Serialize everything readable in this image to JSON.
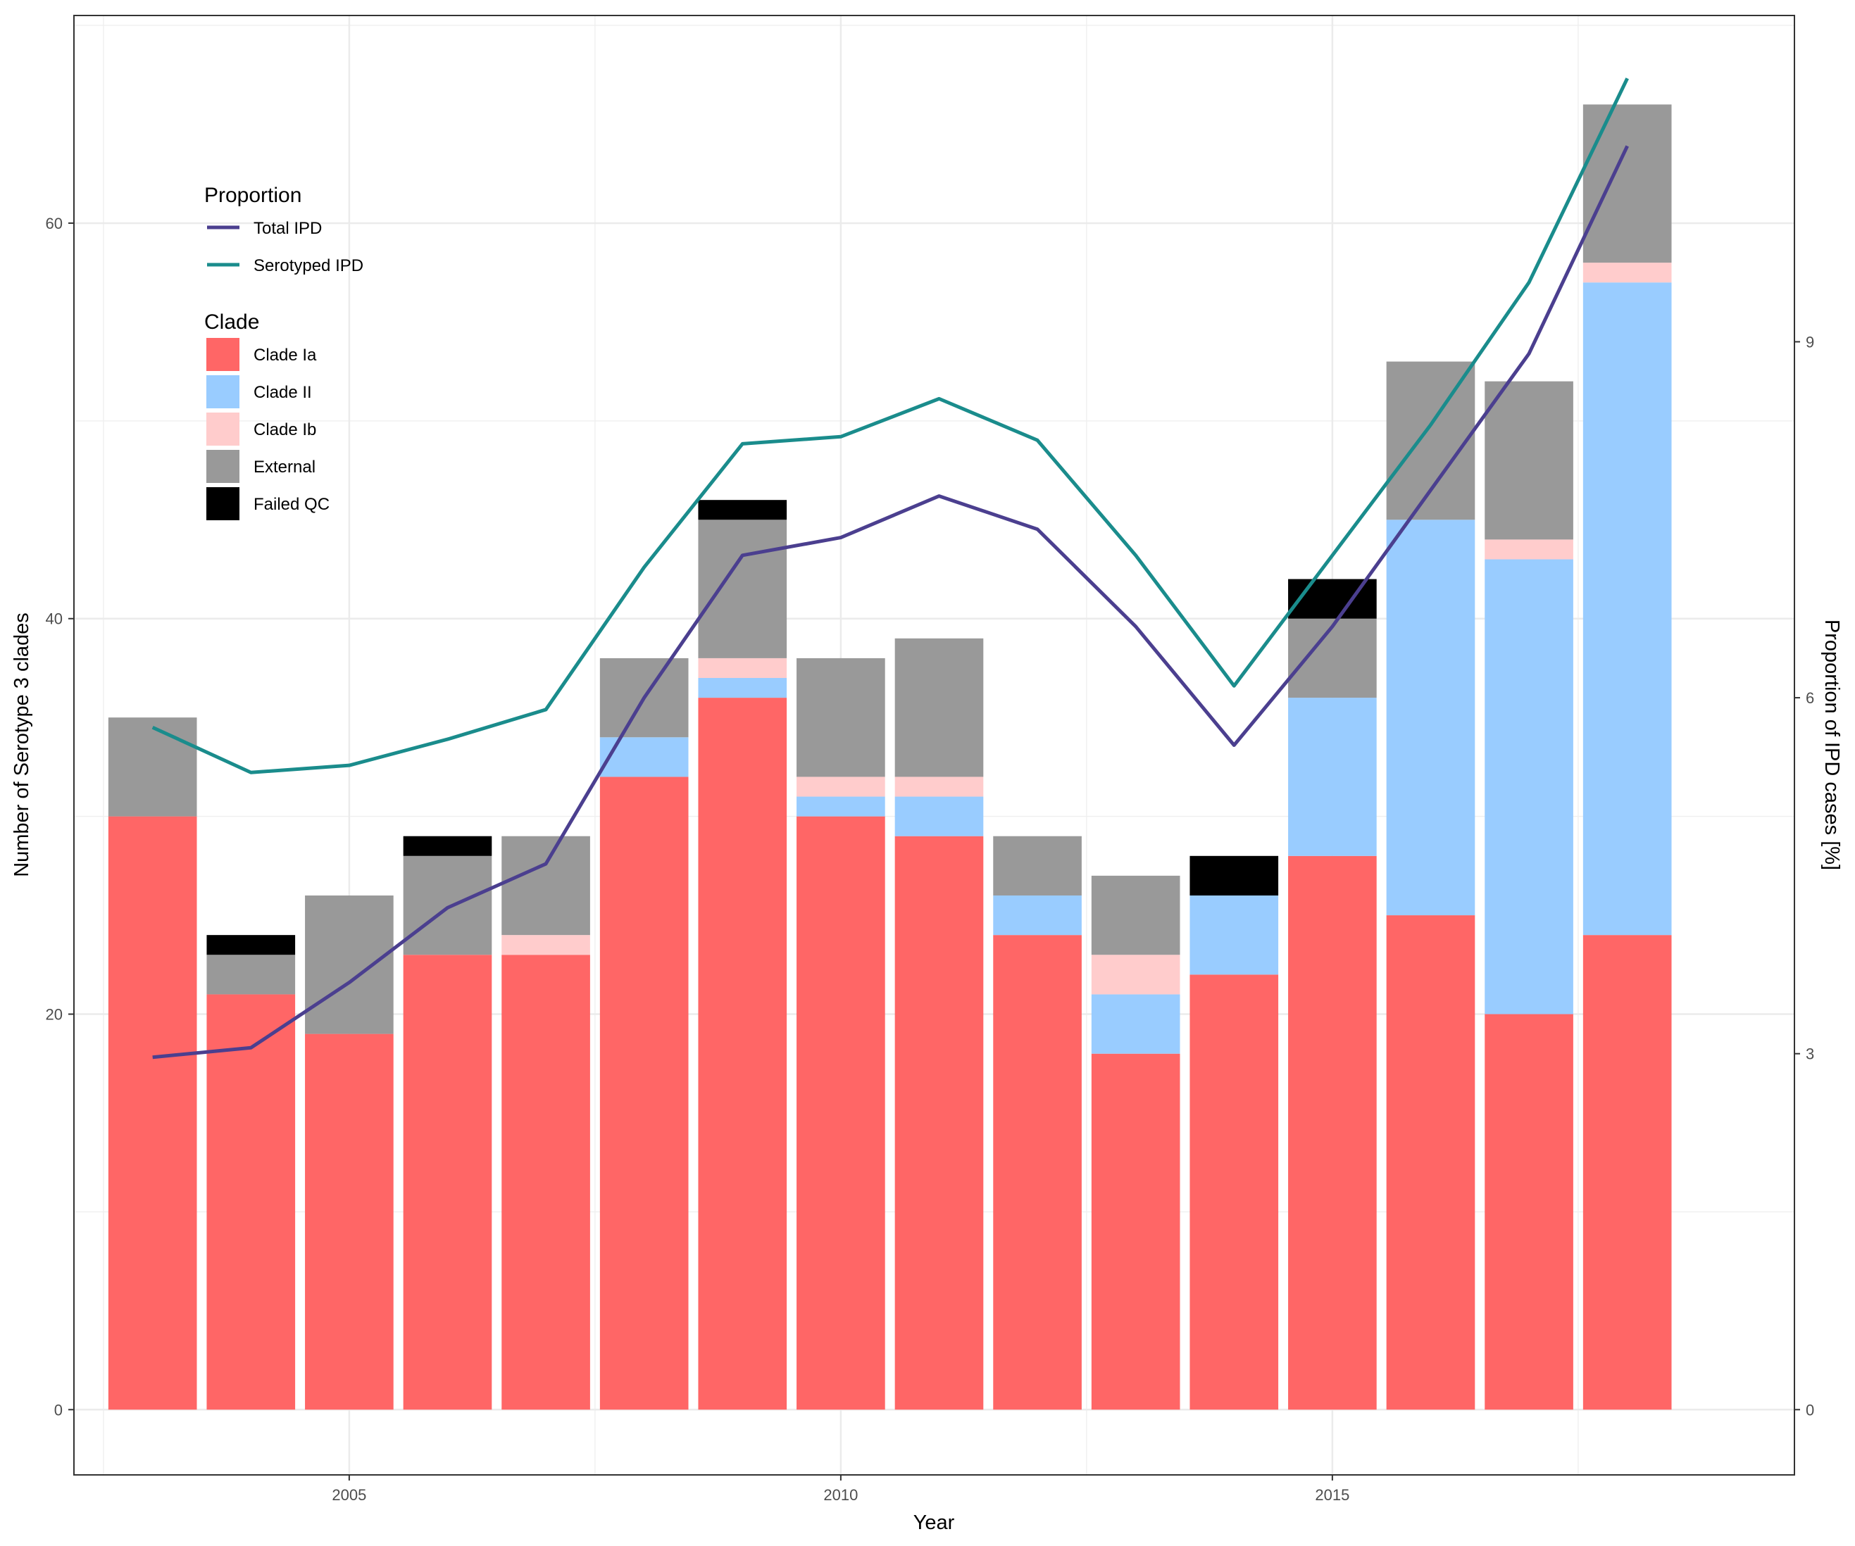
{
  "chart_data": {
    "type": "bar",
    "stacked": true,
    "xlabel": "Year",
    "ylabel": "Number of Serotype 3 clades",
    "y2label": "Proportion of IPD cases [%]",
    "x": [
      2003,
      2004,
      2005,
      2006,
      2007,
      2008,
      2009,
      2010,
      2011,
      2012,
      2013,
      2014,
      2015,
      2016,
      2017,
      2018
    ],
    "xlim": [
      2002.2,
      2019.7
    ],
    "ylim": [
      -3.3,
      70.5
    ],
    "y2lim": [
      -0.55,
      11.75
    ],
    "x_ticks": [
      2005,
      2010,
      2015
    ],
    "y_ticks": [
      0,
      20,
      40,
      60
    ],
    "y2_ticks": [
      0,
      3,
      6,
      9
    ],
    "grid": true,
    "legend_position": "top-left",
    "series": [
      {
        "name": "Clade Ia",
        "color": "#FF6666",
        "values": [
          30,
          21,
          19,
          23,
          23,
          32,
          36,
          30,
          29,
          24,
          18,
          22,
          28,
          25,
          20,
          24
        ]
      },
      {
        "name": "Clade II",
        "color": "#99CCFF",
        "values": [
          0,
          0,
          0,
          0,
          0,
          2,
          1,
          1,
          2,
          2,
          3,
          4,
          8,
          20,
          23,
          33
        ]
      },
      {
        "name": "Clade Ib",
        "color": "#FFCCCC",
        "values": [
          0,
          0,
          0,
          0,
          1,
          0,
          1,
          1,
          1,
          0,
          2,
          0,
          0,
          0,
          1,
          1
        ]
      },
      {
        "name": "External",
        "color": "#999999",
        "values": [
          5,
          2,
          7,
          5,
          5,
          4,
          7,
          6,
          7,
          3,
          4,
          0,
          4,
          8,
          8,
          8
        ]
      },
      {
        "name": "Failed QC",
        "color": "#000000",
        "values": [
          0,
          1,
          0,
          1,
          0,
          0,
          1,
          0,
          0,
          0,
          0,
          2,
          2,
          0,
          0,
          0
        ]
      }
    ],
    "line_series": [
      {
        "name": "Total IPD",
        "color": "#4B3F8F",
        "axis": "right",
        "values": [
          2.97,
          3.05,
          3.6,
          4.23,
          4.6,
          6.0,
          7.2,
          7.35,
          7.7,
          7.42,
          6.6,
          5.6,
          6.6,
          7.75,
          8.9,
          10.65
        ]
      },
      {
        "name": "Serotyped IPD",
        "color": "#1A8C8C",
        "axis": "right",
        "values": [
          5.75,
          5.37,
          5.43,
          5.65,
          5.9,
          7.1,
          8.14,
          8.2,
          8.52,
          8.17,
          7.2,
          6.1,
          7.2,
          8.3,
          9.5,
          11.22
        ]
      }
    ],
    "legend": {
      "proportion_title": "Proportion",
      "clade_title": "Clade"
    }
  }
}
